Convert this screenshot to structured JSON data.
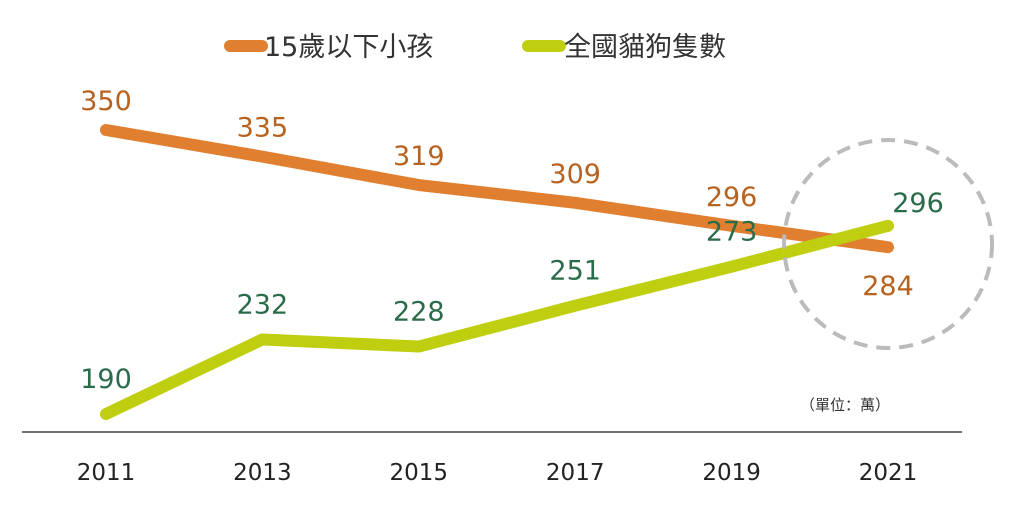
{
  "chart_data": {
    "type": "line",
    "categories": [
      "2011",
      "2013",
      "2015",
      "2017",
      "2019",
      "2021"
    ],
    "series": [
      {
        "name": "15歲以下小孩",
        "color": "#E07F2F",
        "label_color": "#B8621F",
        "values": [
          350,
          335,
          319,
          309,
          296,
          284
        ]
      },
      {
        "name": "全國貓狗隻數",
        "color": "#BFCF10",
        "label_color": "#2A6B4A",
        "values": [
          190,
          232,
          228,
          251,
          273,
          296
        ]
      }
    ],
    "title": "",
    "xlabel": "",
    "ylabel": "",
    "ylim": [
      180,
      360
    ],
    "grid": false,
    "legend": "top",
    "unit_note": "（單位：萬）",
    "highlight": "dashed circle around 2021 crossover",
    "highlight_color": "#BBBBBB"
  }
}
